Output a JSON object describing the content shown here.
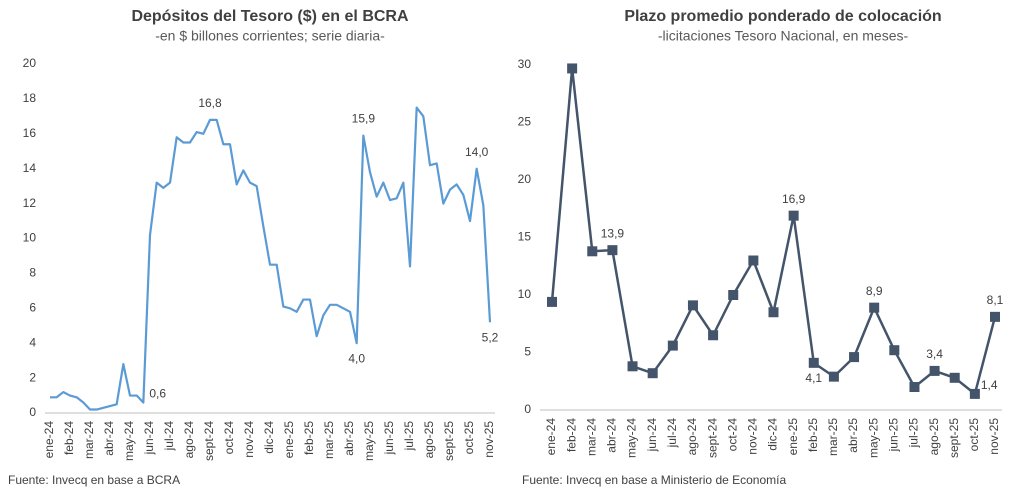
{
  "chart_data": [
    {
      "type": "line",
      "title": "Depósitos del Tesoro ($) en el BCRA",
      "subtitle": "-en $ billones corrientes; serie diaria-",
      "source": "Fuente: Invecq en base a BCRA",
      "color": "#5b9bd5",
      "marker": false,
      "categories": [
        "ene-24",
        null,
        null,
        "feb-24",
        null,
        null,
        "mar-24",
        null,
        null,
        "abr-24",
        null,
        null,
        "may-24",
        null,
        null,
        "jun-24",
        null,
        null,
        "jul-24",
        null,
        null,
        "ago-24",
        null,
        null,
        "sept-24",
        null,
        null,
        "oct-24",
        null,
        null,
        "nov-24",
        null,
        null,
        "dic-24",
        null,
        null,
        "ene-25",
        null,
        null,
        "feb-25",
        null,
        null,
        "mar-25",
        null,
        null,
        "abr-25",
        null,
        null,
        "may-25",
        null,
        null,
        "jun-25",
        null,
        null,
        "jul-25",
        null,
        null,
        "ago-25",
        null,
        null,
        "sept-25",
        null,
        null,
        "oct-25",
        null,
        null,
        "nov-25"
      ],
      "values": [
        0.9,
        0.9,
        1.2,
        1.0,
        0.9,
        0.6,
        0.2,
        0.2,
        0.3,
        0.4,
        0.5,
        2.8,
        1.0,
        1.0,
        0.6,
        10.2,
        13.2,
        12.9,
        13.2,
        15.8,
        15.5,
        15.5,
        16.1,
        16.0,
        16.8,
        16.8,
        15.4,
        15.4,
        13.1,
        13.9,
        13.2,
        13.0,
        10.7,
        8.5,
        8.5,
        6.1,
        6.0,
        5.8,
        6.5,
        6.5,
        4.4,
        5.6,
        6.2,
        6.2,
        6.0,
        5.8,
        4.0,
        15.9,
        13.8,
        12.4,
        13.2,
        12.2,
        12.3,
        13.2,
        8.4,
        17.5,
        17.0,
        14.2,
        14.3,
        12.0,
        12.8,
        13.1,
        12.5,
        11.0,
        14.0,
        11.9,
        5.2
      ],
      "value_labels": [
        null,
        null,
        null,
        null,
        null,
        null,
        null,
        null,
        null,
        null,
        null,
        null,
        null,
        null,
        "0,6",
        null,
        null,
        null,
        null,
        null,
        null,
        null,
        null,
        null,
        "16,8",
        null,
        null,
        null,
        null,
        null,
        null,
        null,
        null,
        null,
        null,
        null,
        null,
        null,
        null,
        null,
        null,
        null,
        null,
        null,
        null,
        null,
        "4,0",
        "15,9",
        null,
        null,
        null,
        null,
        null,
        null,
        null,
        null,
        null,
        null,
        null,
        null,
        null,
        null,
        null,
        null,
        "14,0",
        null,
        "5,2"
      ],
      "ylim": [
        0,
        20
      ],
      "yticks": [
        0,
        2,
        4,
        6,
        8,
        10,
        12,
        14,
        16,
        18,
        20
      ],
      "grid": false
    },
    {
      "type": "line",
      "title": "Plazo promedio ponderado de colocación",
      "subtitle": "-licitaciones Tesoro Nacional, en meses-",
      "source": "Fuente: Invecq en base a Ministerio de Economía",
      "color": "#44546a",
      "marker": true,
      "categories": [
        "ene-24",
        "feb-24",
        "mar-24",
        "abr-24",
        "may-24",
        "jun-24",
        "jul-24",
        "ago-24",
        "sept-24",
        "oct-24",
        "nov-24",
        "dic-24",
        "ene-25",
        "feb-25",
        "mar-25",
        "abr-25",
        "may-25",
        "jun-25",
        "jul-25",
        "ago-25",
        "sept-25",
        "oct-25",
        "nov-25"
      ],
      "values": [
        9.4,
        29.7,
        13.8,
        13.9,
        3.8,
        3.2,
        5.6,
        9.1,
        6.5,
        10.0,
        13.0,
        8.5,
        16.9,
        4.1,
        2.9,
        4.6,
        8.9,
        5.2,
        2.0,
        3.4,
        2.8,
        1.4,
        8.1
      ],
      "value_labels": [
        null,
        null,
        null,
        "13,9",
        null,
        null,
        null,
        null,
        null,
        null,
        null,
        null,
        "16,9",
        "4,1",
        null,
        null,
        "8,9",
        null,
        null,
        "3,4",
        null,
        "1,4",
        "8,1"
      ],
      "ylim": [
        0,
        30
      ],
      "yticks": [
        0,
        5,
        10,
        15,
        20,
        25,
        30
      ],
      "grid": false
    }
  ]
}
